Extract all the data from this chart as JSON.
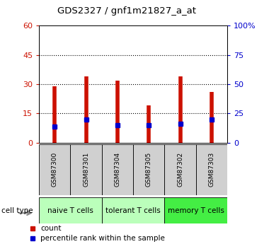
{
  "title": "GDS2327 / gnf1m21827_a_at",
  "samples": [
    "GSM87300",
    "GSM87301",
    "GSM87304",
    "GSM87305",
    "GSM87302",
    "GSM87303"
  ],
  "counts": [
    29.0,
    34.0,
    32.0,
    19.0,
    34.0,
    26.0
  ],
  "percentile_ranks": [
    14.0,
    20.0,
    15.0,
    15.0,
    16.0,
    20.0
  ],
  "groups": [
    {
      "label": "naive T cells",
      "size": 2,
      "color": "#bbffbb"
    },
    {
      "label": "tolerant T cells",
      "size": 2,
      "color": "#bbffbb"
    },
    {
      "label": "memory T cells",
      "size": 2,
      "color": "#44ee44"
    }
  ],
  "ylim_left": [
    0,
    60
  ],
  "ylim_right": [
    0,
    100
  ],
  "yticks_left": [
    0,
    15,
    30,
    45,
    60
  ],
  "yticks_right": [
    0,
    25,
    50,
    75,
    100
  ],
  "ytick_labels_right": [
    "0",
    "25",
    "50",
    "75",
    "100%"
  ],
  "bar_color": "#cc1100",
  "marker_color": "#0000cc",
  "tick_label_color_left": "#cc1100",
  "tick_label_color_right": "#0000cc",
  "sample_box_color": "#d0d0d0",
  "cell_type_label": "cell type",
  "legend_count": "count",
  "legend_percentile": "percentile rank within the sample",
  "grid_ticks": [
    15,
    30,
    45
  ]
}
